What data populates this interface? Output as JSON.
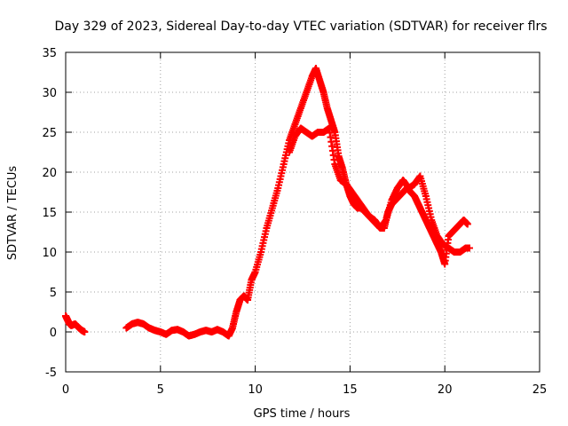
{
  "chart_data": {
    "type": "scatter",
    "title": "Day 329 of 2023, Sidereal Day-to-day VTEC variation (SDTVAR) for receiver flrs",
    "xlabel": "GPS time / hours",
    "ylabel": "SDTVAR / TECUs",
    "xlim": [
      0,
      25
    ],
    "ylim": [
      -5,
      35
    ],
    "xticks": [
      0,
      5,
      10,
      15,
      20,
      25
    ],
    "yticks": [
      -5,
      0,
      5,
      10,
      15,
      20,
      25,
      30,
      35
    ],
    "grid": true,
    "marker": "+",
    "series": [
      {
        "name": "flrs",
        "color": "#ff0000",
        "x": [
          0.0,
          0.1,
          0.2,
          0.3,
          0.5,
          0.7,
          0.85,
          1.0,
          3.2,
          3.5,
          3.8,
          4.1,
          4.4,
          4.7,
          5.0,
          5.3,
          5.6,
          5.9,
          6.2,
          6.5,
          6.8,
          7.1,
          7.4,
          7.7,
          8.0,
          8.3,
          8.6,
          8.8,
          9.0,
          9.2,
          9.4,
          9.6,
          9.8,
          10.0,
          10.3,
          10.6,
          10.9,
          11.2,
          11.5,
          11.8,
          12.1,
          12.4,
          12.7,
          13.0,
          13.2,
          13.4,
          13.6,
          13.8,
          14.0,
          14.2,
          14.4,
          14.6,
          14.8,
          15.0,
          15.2,
          15.4,
          15.6,
          15.8,
          16.0,
          16.2,
          16.4,
          16.6,
          16.8,
          17.0,
          17.2,
          17.4,
          17.6,
          17.8,
          18.0,
          18.2,
          18.4,
          18.6,
          18.8,
          19.0,
          19.2,
          19.4,
          19.6,
          19.8,
          20.0,
          20.2,
          20.4,
          20.6,
          20.8,
          21.0,
          21.2,
          11.8,
          12.1,
          12.4,
          12.7,
          13.0,
          13.3,
          13.6,
          13.9,
          14.2,
          14.5,
          14.8,
          15.1,
          15.4,
          15.7,
          16.0,
          16.3,
          16.6,
          16.9,
          17.2,
          17.5,
          17.8,
          18.1,
          18.4,
          18.7,
          19.0,
          19.3,
          19.6,
          19.9,
          20.2,
          20.5,
          20.8,
          21.1,
          21.3
        ],
        "y": [
          2.0,
          1.5,
          1.0,
          0.8,
          1.0,
          0.5,
          0.2,
          0.0,
          0.5,
          1.0,
          1.2,
          1.0,
          0.5,
          0.2,
          0.0,
          -0.3,
          0.2,
          0.3,
          0.0,
          -0.5,
          -0.3,
          0.0,
          0.2,
          0.0,
          0.3,
          0.0,
          -0.5,
          0.5,
          2.5,
          4.0,
          4.5,
          4.0,
          6.5,
          7.5,
          10.0,
          13.0,
          15.5,
          18.0,
          21.0,
          24.0,
          26.0,
          28.0,
          30.0,
          32.0,
          33.0,
          31.5,
          30.0,
          28.0,
          26.5,
          25.0,
          22.0,
          20.5,
          18.5,
          17.0,
          16.0,
          15.5,
          15.5,
          15.0,
          14.5,
          14.0,
          13.5,
          13.0,
          13.0,
          15.0,
          16.0,
          16.5,
          17.0,
          17.5,
          18.0,
          17.5,
          17.0,
          16.0,
          15.0,
          14.0,
          13.0,
          12.0,
          11.0,
          10.0,
          8.5,
          12.0,
          12.5,
          13.0,
          13.5,
          14.0,
          13.5,
          22.5,
          24.5,
          25.5,
          25.0,
          24.5,
          25.0,
          25.0,
          25.5,
          21.0,
          19.0,
          18.5,
          17.5,
          16.5,
          15.5,
          14.5,
          14.0,
          13.0,
          14.0,
          16.5,
          18.0,
          19.0,
          18.0,
          18.5,
          19.5,
          17.0,
          14.0,
          12.0,
          11.0,
          10.5,
          10.0,
          10.0,
          10.5,
          10.5
        ]
      }
    ]
  }
}
